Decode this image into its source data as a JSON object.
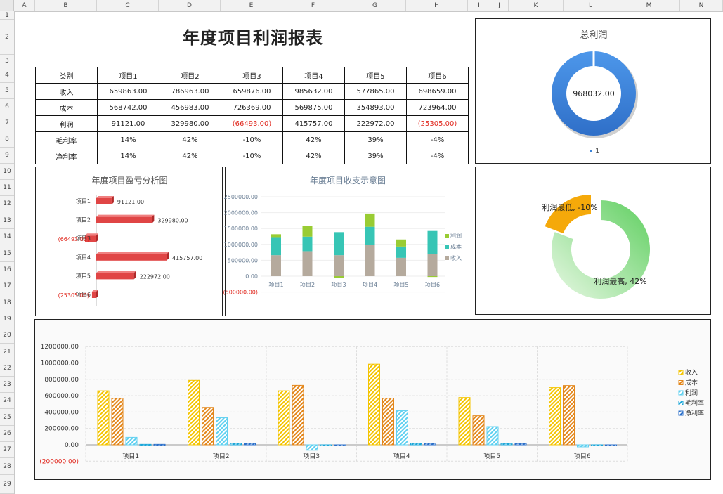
{
  "sheet": {
    "columns": [
      "A",
      "B",
      "C",
      "D",
      "E",
      "F",
      "G",
      "H",
      "I",
      "J",
      "K",
      "L",
      "M",
      "N"
    ],
    "rows": [
      "1",
      "2",
      "3",
      "4",
      "5",
      "6",
      "7",
      "8",
      "9",
      "10",
      "11",
      "12",
      "13",
      "14",
      "15",
      "16",
      "17",
      "18",
      "19",
      "20",
      "21",
      "22",
      "23",
      "24",
      "25",
      "26",
      "27",
      "28",
      "29"
    ]
  },
  "report": {
    "title": "年度项目利润报表",
    "headers": [
      "类别",
      "项目1",
      "项目2",
      "项目3",
      "项目4",
      "项目5",
      "项目6"
    ],
    "rows": [
      {
        "label": "收入",
        "cells": [
          "659863.00",
          "786963.00",
          "659876.00",
          "985632.00",
          "577865.00",
          "698659.00"
        ]
      },
      {
        "label": "成本",
        "cells": [
          "568742.00",
          "456983.00",
          "726369.00",
          "569875.00",
          "354893.00",
          "723964.00"
        ]
      },
      {
        "label": "利润",
        "cells": [
          "91121.00",
          "329980.00",
          "(66493.00)",
          "415757.00",
          "222972.00",
          "(25305.00)"
        ]
      },
      {
        "label": "毛利率",
        "cells": [
          "14%",
          "42%",
          "-10%",
          "42%",
          "39%",
          "-4%"
        ]
      },
      {
        "label": "净利率",
        "cells": [
          "14%",
          "42%",
          "-10%",
          "42%",
          "39%",
          "-4%"
        ]
      }
    ],
    "negative_color": "#e0261c"
  },
  "chart_data": [
    {
      "id": "total-profit",
      "type": "pie",
      "title": "总利润",
      "center_label": "968032.00",
      "categories": [
        "1"
      ],
      "values": [
        968032.0
      ],
      "legend": [
        "1"
      ],
      "legend_position": "bottom",
      "color": "#3a83d8"
    },
    {
      "id": "profit-loss",
      "type": "bar",
      "orientation": "horizontal",
      "title": "年度项目盈亏分析图",
      "categories": [
        "项目1",
        "项目2",
        "项目3",
        "项目4",
        "项目5",
        "项目6"
      ],
      "values": [
        91121.0,
        329980.0,
        -66493.0,
        415757.0,
        222972.0,
        -25305.0
      ],
      "labels": [
        "91121.00",
        "329980.00",
        "(66493.00)",
        "415757.00",
        "222972.00",
        "(25305.00)"
      ],
      "color": "#e04545",
      "negative_label_color": "#e0261c"
    },
    {
      "id": "income-expense",
      "type": "bar",
      "stacked": true,
      "title": "年度项目收支示意图",
      "categories": [
        "项目1",
        "项目2",
        "项目3",
        "项目4",
        "项目5",
        "项目6"
      ],
      "series": [
        {
          "name": "收入",
          "values": [
            659863.0,
            786963.0,
            659876.0,
            985632.0,
            577865.0,
            698659.0
          ],
          "color": "#b5aa9d"
        },
        {
          "name": "成本",
          "values": [
            568742.0,
            456983.0,
            726369.0,
            569875.0,
            354893.0,
            723964.0
          ],
          "color": "#37c5b5"
        },
        {
          "name": "利润",
          "values": [
            91121.0,
            329980.0,
            -66493.0,
            415757.0,
            222972.0,
            -25305.0
          ],
          "color": "#99cc33"
        }
      ],
      "yticks": [
        "2500000.00",
        "2000000.00",
        "1500000.00",
        "1000000.00",
        "500000.00",
        "0.00",
        "(500000.00)"
      ],
      "ylim": [
        -500000,
        2500000
      ],
      "legend_position": "right"
    },
    {
      "id": "margin-donut",
      "type": "pie",
      "title": "",
      "categories": [
        "利润最低",
        "利润最高"
      ],
      "values": [
        -10,
        42
      ],
      "labels": [
        "利润最低, -10%",
        "利润最高, 42%"
      ],
      "colors": [
        "#f5a90a",
        "#5fcf60"
      ]
    },
    {
      "id": "overview",
      "type": "bar",
      "categories": [
        "项目1",
        "项目2",
        "项目3",
        "项目4",
        "项目5",
        "项目6"
      ],
      "series": [
        {
          "name": "收入",
          "values": [
            659863.0,
            786963.0,
            659876.0,
            985632.0,
            577865.0,
            698659.0
          ],
          "color": "#f4c400"
        },
        {
          "name": "成本",
          "values": [
            568742.0,
            456983.0,
            726369.0,
            569875.0,
            354893.0,
            723964.0
          ],
          "color": "#e3861a"
        },
        {
          "name": "利润",
          "values": [
            91121.0,
            329980.0,
            -66493.0,
            415757.0,
            222972.0,
            -25305.0
          ],
          "color": "#5fd0f0"
        },
        {
          "name": "毛利率",
          "values": [
            0.14,
            0.42,
            -0.1,
            0.42,
            0.39,
            -0.04
          ],
          "color": "#1aa6d8"
        },
        {
          "name": "净利率",
          "values": [
            0.14,
            0.42,
            -0.1,
            0.42,
            0.39,
            -0.04
          ],
          "color": "#2a6fc9"
        }
      ],
      "yticks": [
        "1200000.00",
        "1000000.00",
        "800000.00",
        "600000.00",
        "400000.00",
        "200000.00",
        "0.00",
        "(200000.00)"
      ],
      "ylim": [
        -200000,
        1200000
      ],
      "grid": true,
      "legend_position": "right"
    }
  ]
}
